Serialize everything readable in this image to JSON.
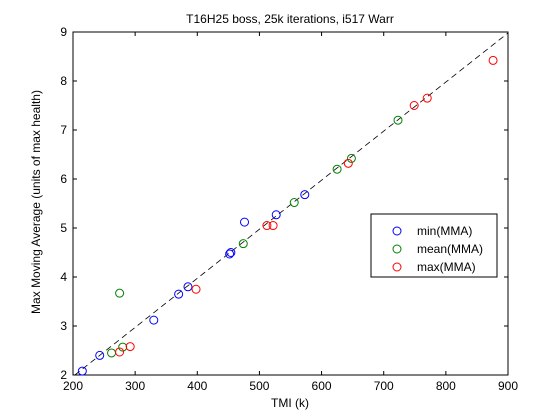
{
  "chart_data": {
    "type": "scatter",
    "title": "T16H25 boss, 25k iterations, i517 Warr",
    "xlabel": "TMI (k)",
    "ylabel": "Max Moving Average (units of max health)",
    "xlim": [
      200,
      900
    ],
    "ylim": [
      2,
      9
    ],
    "xticks": [
      200,
      300,
      400,
      500,
      600,
      700,
      800,
      900
    ],
    "yticks": [
      2,
      3,
      4,
      5,
      6,
      7,
      8,
      9
    ],
    "grid": false,
    "legend_position": "right",
    "fit_line": {
      "style": "dashed",
      "color": "#000000",
      "points": [
        [
          203,
          2.0
        ],
        [
          900,
          8.98
        ]
      ]
    },
    "series": [
      {
        "name": "min(MMA)",
        "color": "#0000ff",
        "points": [
          [
            215,
            2.08
          ],
          [
            243,
            2.4
          ],
          [
            330,
            3.12
          ],
          [
            370,
            3.65
          ],
          [
            385,
            3.8
          ],
          [
            452,
            4.47
          ],
          [
            454,
            4.5
          ],
          [
            476,
            5.12
          ],
          [
            527,
            5.27
          ],
          [
            573,
            5.68
          ]
        ]
      },
      {
        "name": "mean(MMA)",
        "color": "#008000",
        "points": [
          [
            262,
            2.45
          ],
          [
            275,
            3.67
          ],
          [
            280,
            2.57
          ],
          [
            474,
            4.68
          ],
          [
            556,
            5.52
          ],
          [
            625,
            6.2
          ],
          [
            648,
            6.42
          ],
          [
            723,
            7.2
          ]
        ]
      },
      {
        "name": "max(MMA)",
        "color": "#ff0000",
        "points": [
          [
            275,
            2.47
          ],
          [
            292,
            2.58
          ],
          [
            398,
            3.75
          ],
          [
            512,
            5.05
          ],
          [
            522,
            5.05
          ],
          [
            643,
            6.32
          ],
          [
            749,
            7.5
          ],
          [
            770,
            7.65
          ],
          [
            876,
            8.42
          ]
        ]
      }
    ]
  }
}
